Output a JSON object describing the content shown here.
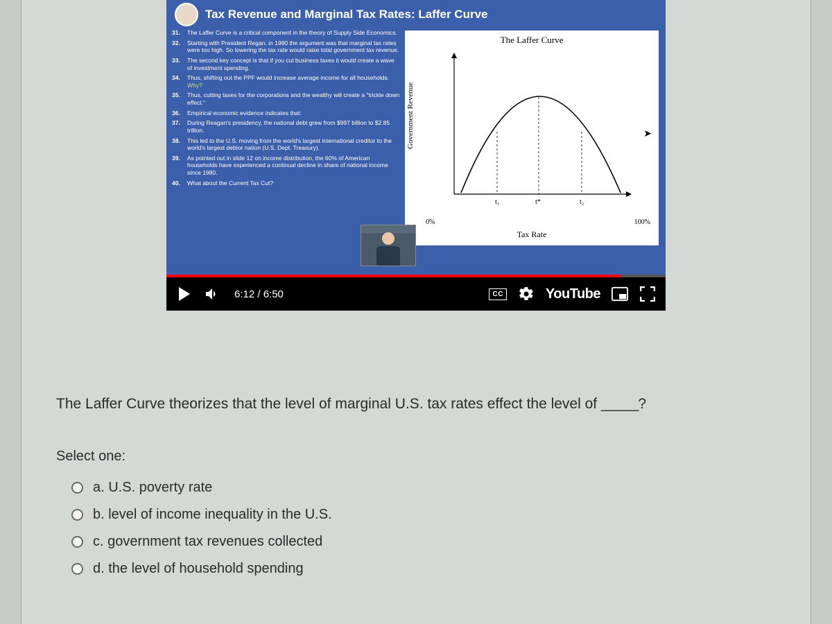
{
  "video": {
    "slide_title": "Tax Revenue and Marginal Tax Rates: Laffer Curve",
    "bullets": [
      {
        "n": "31.",
        "text": "The Laffer Curve is a critical component in the theory of Supply Side Economics."
      },
      {
        "n": "32.",
        "text": "Starting with President Regan, in 1980 the argument was that marginal tax rates were too high. So lowering the tax rate would raise total government tax revenue."
      },
      {
        "n": "33.",
        "text": "The second key concept is that if you cut business taxes it would create a wave of investment spending."
      },
      {
        "n": "34.",
        "text": "Thus, shifting out the PPF would increase average income for all households.",
        "suffix_why": " Why?"
      },
      {
        "n": "35.",
        "text": "Thus, cutting taxes for the corporations and the wealthy will create a \"trickle down effect.\""
      },
      {
        "n": "36.",
        "text": "Empirical economic evidence indicates that:"
      },
      {
        "n": "37.",
        "text": "During Reagan's presidency, the national debt grew from $997 billion to $2.85 trillion."
      },
      {
        "n": "38.",
        "text": "This led to the U.S. moving from the world's largest international creditor to the world's largest debtor nation (U.S. Dept. Treasury)."
      },
      {
        "n": "39.",
        "text": "As pointed out in slide 12 on income distribution, the 60% of American households have experienced a continual decline in share of national income since 1980."
      },
      {
        "n": "40.",
        "text": "What about the Current Tax Cut?"
      }
    ],
    "chart": {
      "title": "The Laffer Curve",
      "y_label": "Government Revenue",
      "x_label": "Tax Rate",
      "x_tick_left": "0%",
      "x_tick_right": "100%",
      "tick_t1": "t₁",
      "tick_tstar": "t*",
      "tick_t2": "t₂",
      "curve_color": "#000000",
      "bg_color": "#ffffff"
    },
    "controls": {
      "time": "6:12 / 6:50",
      "cc_label": "CC",
      "youtube_label": "YouTube",
      "progress_pct": 91,
      "progress_color": "#ff0000"
    }
  },
  "question": {
    "text_prefix": "The Laffer Curve theorizes that the level of marginal U.S. tax rates effect the level of ",
    "blank": "_____",
    "text_suffix": "?",
    "select_label": "Select one:",
    "options": [
      {
        "letter": "a.",
        "text": "U.S. poverty rate"
      },
      {
        "letter": "b.",
        "text": "level of income inequality in the U.S."
      },
      {
        "letter": "c.",
        "text": "government tax revenues collected"
      },
      {
        "letter": "d.",
        "text": "the level of household spending"
      }
    ]
  },
  "colors": {
    "page_bg": "#c8ccc9",
    "panel_bg": "#d5d9d6",
    "slide_bg": "#3b5fab",
    "text_dark": "#2a2a2a"
  }
}
